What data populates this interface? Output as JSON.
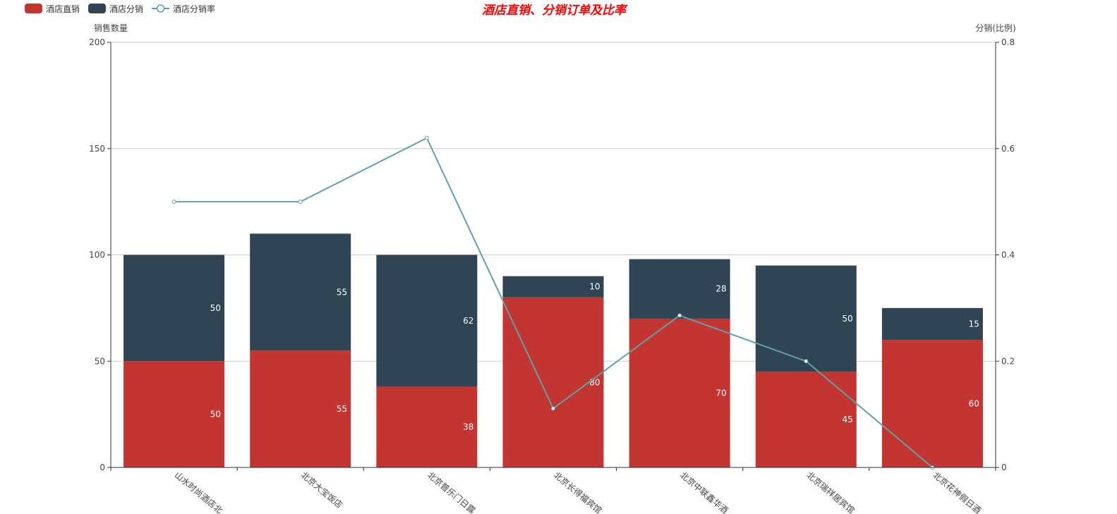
{
  "chart_data": {
    "type": "bar",
    "title": "酒店直销、分销订单及比率",
    "categories": [
      "山水时尚酒店北",
      "北京大宝饭店",
      "北京普乐门日露",
      "北京长得福宾馆",
      "北京中联鑫华酒",
      "北京瑞祥居宾馆",
      "北京花神假日酒"
    ],
    "stacked": true,
    "series": [
      {
        "name": "酒店直销",
        "type": "bar",
        "values": [
          50,
          55,
          38,
          80,
          70,
          45,
          60
        ],
        "color": "#c23531",
        "axis": "left"
      },
      {
        "name": "酒店分销",
        "type": "bar",
        "values": [
          50,
          55,
          62,
          10,
          28,
          50,
          15
        ],
        "color": "#2f4554",
        "axis": "left"
      },
      {
        "name": "酒店分销率",
        "type": "line",
        "values": [
          0.5,
          0.5,
          0.62,
          0.111,
          0.286,
          0.2,
          0
        ],
        "color": "#61a0a8",
        "axis": "right"
      }
    ],
    "ylabel": "销售数量",
    "ylim": [
      0,
      200
    ],
    "yticks": [
      0,
      50,
      100,
      150,
      200
    ],
    "y2label": "分销(比例)",
    "y2lim": [
      0,
      0.8
    ],
    "y2ticks": [
      0,
      0.2,
      0.4,
      0.6,
      0.8
    ],
    "grid": true,
    "legend_position": "top-left",
    "title_color": "#ff0000"
  }
}
